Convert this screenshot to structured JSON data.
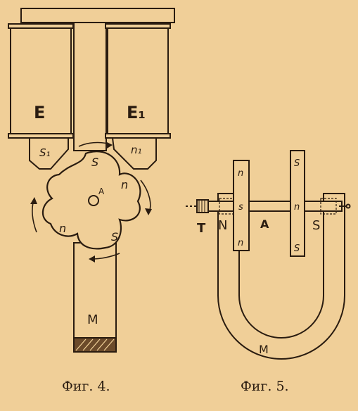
{
  "figure4": {
    "caption": "Фиг. 4.",
    "labels": {
      "coil_left": "E",
      "coil_right": "E₁",
      "pole_left": "S₁",
      "pole_right": "n₁",
      "rotor_top": "S",
      "rotor_right": "n",
      "rotor_left": "n",
      "rotor_bottom": "S",
      "axle": "A",
      "base": "M"
    }
  },
  "figure5": {
    "caption": "Фиг. 5.",
    "labels": {
      "disk_left_top": "n",
      "disk_left_mid": "s",
      "disk_left_bottom": "n",
      "disk_right_top": "S",
      "disk_right_mid": "n",
      "disk_right_bottom": "S",
      "pole_north": "N",
      "pole_south": "S",
      "axle": "A",
      "pulley": "T",
      "magnet": "M"
    }
  },
  "colors": {
    "paper": "#f0cf98",
    "ink": "#2a1c10"
  }
}
